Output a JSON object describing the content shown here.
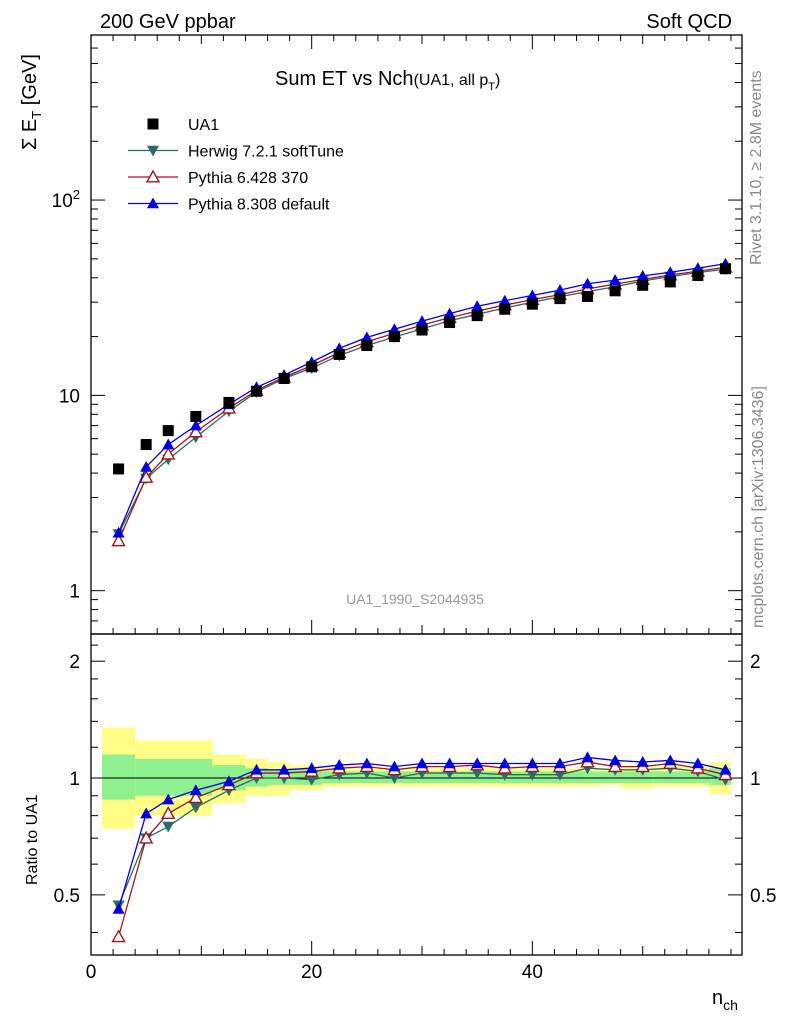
{
  "header": {
    "left": "200 GeV ppbar",
    "right": "Soft QCD"
  },
  "title_main": "Sum ET vs Nch",
  "title_sub_prefix": "(UA1, all p",
  "title_sub_subscript": "T",
  "title_sub_suffix": ")",
  "side_text_top": "Rivet 3.1.10, ≥ 2.8M events",
  "side_text_bottom": "mcplots.cern.ch [arXiv:1306.3436]",
  "analysis_id": "UA1_1990_S2044935",
  "ylabel_main": "Σ E",
  "ylabel_main_sub": "T",
  "ylabel_main_unit": " [GeV]",
  "ylabel_ratio": "Ratio to UA1",
  "xlabel": "n",
  "xlabel_sub": "ch",
  "colors": {
    "data": "#000000",
    "herwig": "#2e6b66",
    "pythia6": "#a0161e",
    "pythia8": "#0000e0",
    "band_inner": "#8ef08e",
    "band_outer": "#ffff88"
  },
  "chart_data": {
    "type": "line",
    "x_range": [
      0,
      59
    ],
    "ylim_main": [
      0.6,
      700
    ],
    "yscale_main": "log",
    "ylim_ratio": [
      0.35,
      2.35
    ],
    "yscale_ratio": "log",
    "x_ticks": [
      "0",
      "20",
      "40"
    ],
    "y_ticks_main": [
      "1",
      "10",
      "10^2"
    ],
    "y_ticks_ratio": [
      "0.5",
      "1",
      "2"
    ],
    "x": [
      2.5,
      5,
      7,
      9.5,
      12.5,
      15,
      17.5,
      20,
      22.5,
      25,
      27.5,
      30,
      32.5,
      35,
      37.5,
      40,
      42.5,
      45,
      47.5,
      50,
      52.5,
      55,
      57.5
    ],
    "series": [
      {
        "name": "UA1",
        "marker": "square",
        "values": [
          4.2,
          5.6,
          6.6,
          7.8,
          9.2,
          10.5,
          12.2,
          14.0,
          16.2,
          18.0,
          20.0,
          21.6,
          23.6,
          25.6,
          27.6,
          29.3,
          31.3,
          32.1,
          34.3,
          36.6,
          38.1,
          41.1,
          44.5
        ]
      },
      {
        "name": "Herwig 7.2.1 softTune",
        "marker": "triangle-down",
        "values": [
          1.95,
          3.75,
          4.7,
          6.1,
          8.3,
          10.4,
          12.2,
          13.8,
          16.0,
          18.0,
          19.9,
          21.9,
          24.1,
          26.0,
          28.0,
          30.0,
          32.0,
          34.0,
          36.0,
          38.5,
          40.6,
          42.5,
          44.3
        ]
      },
      {
        "name": "Pythia 6.428 370",
        "marker": "triangle-up-open",
        "values": [
          1.8,
          3.8,
          5.0,
          6.5,
          8.6,
          10.6,
          12.4,
          14.2,
          16.6,
          18.8,
          20.8,
          22.9,
          25.0,
          27.0,
          29.0,
          30.9,
          32.8,
          35.1,
          37.1,
          39.2,
          41.4,
          43.2,
          45.3
        ]
      },
      {
        "name": "Pythia 8.308 default",
        "marker": "triangle-up",
        "values": [
          1.98,
          4.3,
          5.6,
          7.0,
          9.0,
          11.0,
          12.7,
          14.8,
          17.4,
          19.8,
          21.8,
          24.0,
          26.2,
          28.6,
          30.5,
          32.5,
          34.6,
          37.3,
          38.9,
          40.9,
          42.7,
          44.8,
          47.2
        ]
      }
    ],
    "ratio_series": [
      {
        "name": "Herwig 7.2.1 softTune",
        "values": [
          0.47,
          0.7,
          0.75,
          0.84,
          0.93,
          1.0,
          1.0,
          0.99,
          1.02,
          1.03,
          1.0,
          1.03,
          1.03,
          1.03,
          1.02,
          1.02,
          1.02,
          1.06,
          1.05,
          1.05,
          1.06,
          1.04,
          0.99
        ]
      },
      {
        "name": "Pythia 6.428 370",
        "values": [
          0.39,
          0.7,
          0.81,
          0.89,
          0.96,
          1.03,
          1.03,
          1.04,
          1.06,
          1.07,
          1.05,
          1.07,
          1.07,
          1.08,
          1.06,
          1.07,
          1.07,
          1.1,
          1.07,
          1.07,
          1.09,
          1.06,
          1.02
        ]
      },
      {
        "name": "Pythia 8.308 default",
        "values": [
          0.46,
          0.81,
          0.88,
          0.93,
          0.98,
          1.05,
          1.05,
          1.06,
          1.08,
          1.09,
          1.07,
          1.09,
          1.09,
          1.09,
          1.09,
          1.09,
          1.09,
          1.13,
          1.11,
          1.1,
          1.11,
          1.09,
          1.05
        ]
      }
    ],
    "ratio_band_bins": [
      {
        "lo": 1,
        "hi": 4,
        "inner": [
          0.88,
          1.15
        ],
        "outer": [
          0.74,
          1.35
        ]
      },
      {
        "lo": 4,
        "hi": 11,
        "inner": [
          0.9,
          1.12
        ],
        "outer": [
          0.8,
          1.25
        ]
      },
      {
        "lo": 11,
        "hi": 14,
        "inner": [
          0.93,
          1.08
        ],
        "outer": [
          0.86,
          1.15
        ]
      },
      {
        "lo": 14,
        "hi": 16,
        "inner": [
          0.95,
          1.06
        ],
        "outer": [
          0.9,
          1.12
        ]
      },
      {
        "lo": 16,
        "hi": 18,
        "inner": [
          0.96,
          1.05
        ],
        "outer": [
          0.9,
          1.1
        ]
      },
      {
        "lo": 18,
        "hi": 21,
        "inner": [
          0.96,
          1.05
        ],
        "outer": [
          0.93,
          1.08
        ]
      },
      {
        "lo": 21,
        "hi": 46,
        "inner": [
          0.97,
          1.04
        ],
        "outer": [
          0.95,
          1.06
        ]
      },
      {
        "lo": 46,
        "hi": 48,
        "inner": [
          0.97,
          1.04
        ],
        "outer": [
          0.96,
          1.06
        ]
      },
      {
        "lo": 48,
        "hi": 51,
        "inner": [
          0.97,
          1.04
        ],
        "outer": [
          0.94,
          1.07
        ]
      },
      {
        "lo": 51,
        "hi": 56,
        "inner": [
          0.97,
          1.04
        ],
        "outer": [
          0.95,
          1.07
        ]
      },
      {
        "lo": 56,
        "hi": 58,
        "inner": [
          0.96,
          1.06
        ],
        "outer": [
          0.91,
          1.1
        ]
      }
    ]
  }
}
